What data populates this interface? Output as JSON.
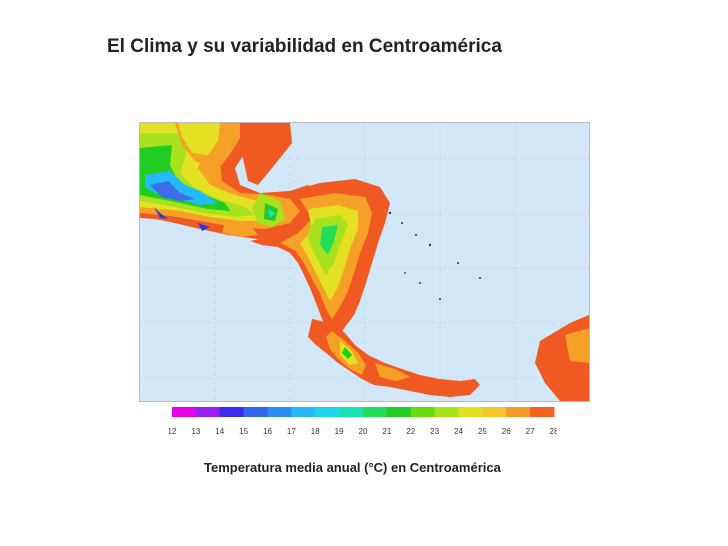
{
  "title": "El Clima y su variabilidad en Centroamérica",
  "caption": "Temperatura media anual (°C) en Centroamérica",
  "legend": {
    "ticks": [
      "12",
      "13",
      "14",
      "15",
      "16",
      "17",
      "18",
      "19",
      "20",
      "21",
      "22",
      "23",
      "24",
      "25",
      "26",
      "27",
      "28"
    ],
    "colors": [
      "#e600e6",
      "#9a1df2",
      "#3d2bf0",
      "#3366ee",
      "#2a8ef6",
      "#25b8fa",
      "#1fd6e8",
      "#18e0b2",
      "#22dd55",
      "#22cc22",
      "#66dd11",
      "#a8e21e",
      "#e0e020",
      "#f2c62a",
      "#f59a26",
      "#f26222"
    ]
  },
  "map": {
    "water_color": "#d2e8f9",
    "land_hot_color": "#f05a22"
  }
}
